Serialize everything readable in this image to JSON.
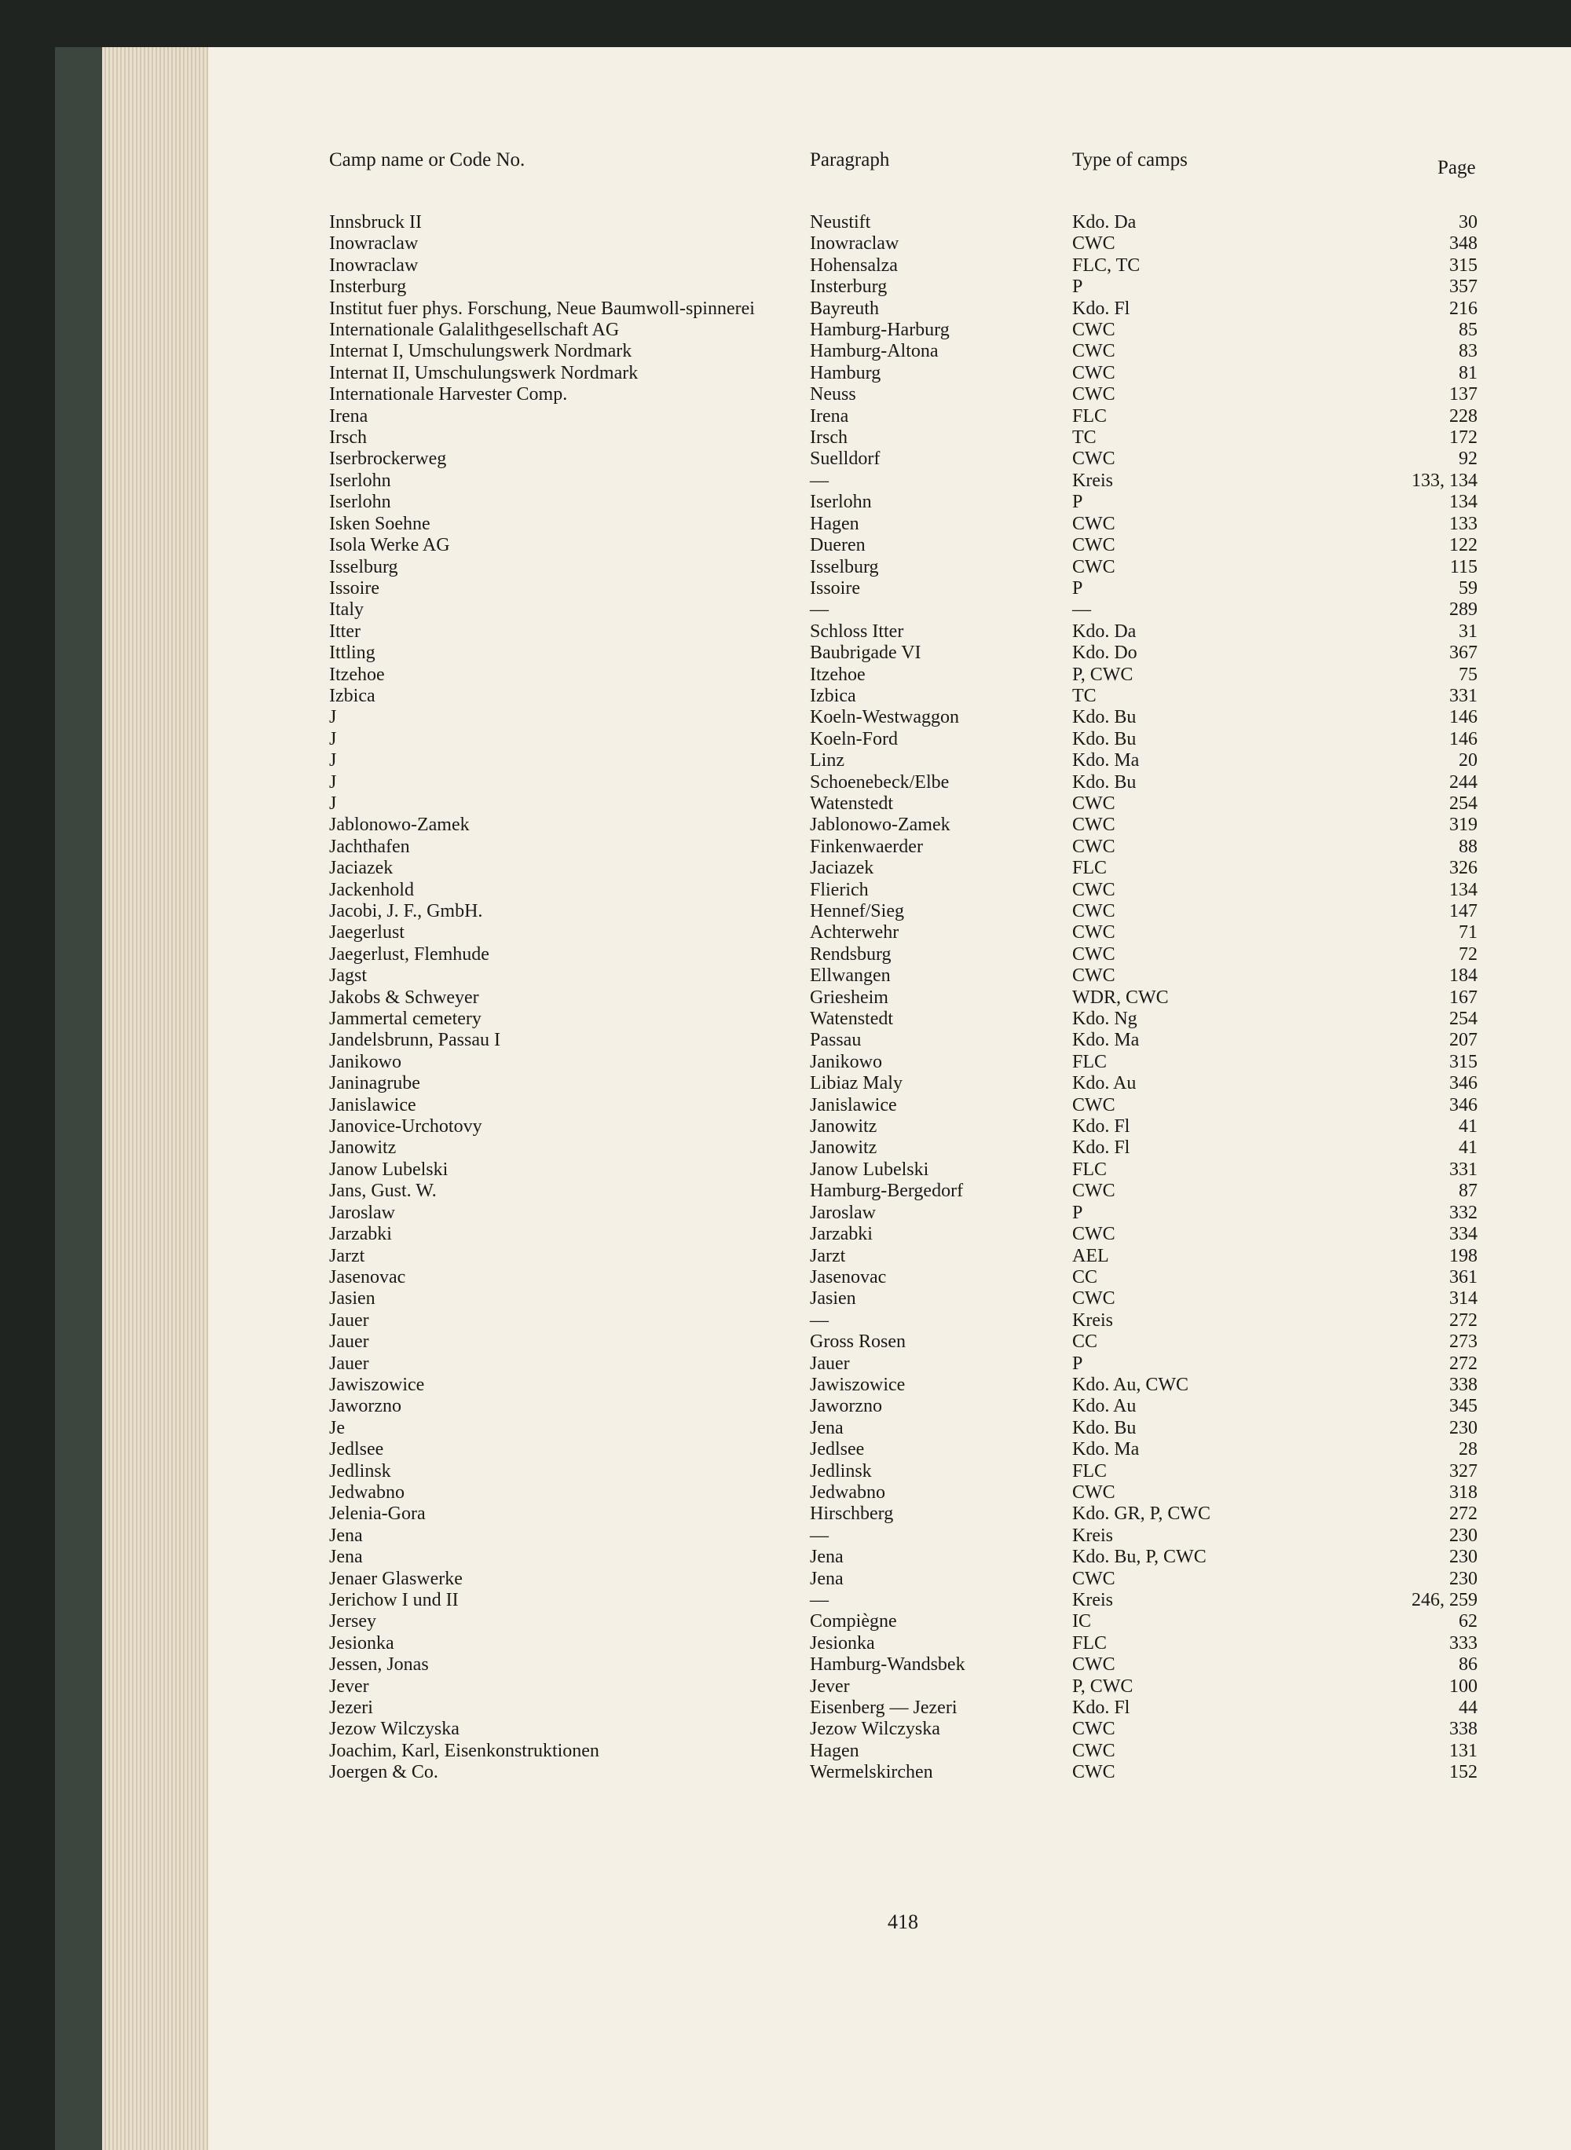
{
  "header": {
    "name": "Camp name or Code No.",
    "paragraph": "Paragraph",
    "type": "Type of camps",
    "page": "Page"
  },
  "rows": [
    [
      "Innsbruck II",
      "Neustift",
      "Kdo. Da",
      "30"
    ],
    [
      "Inowraclaw",
      "Inowraclaw",
      "CWC",
      "348"
    ],
    [
      "Inowraclaw",
      "Hohensalza",
      "FLC, TC",
      "315"
    ],
    [
      "Insterburg",
      "Insterburg",
      "P",
      "357"
    ],
    [
      "Institut fuer phys. Forschung, Neue Baumwoll-spinnerei",
      "Bayreuth",
      "Kdo. Fl",
      "216"
    ],
    [
      "Internationale Galalithgesellschaft AG",
      "Hamburg-Harburg",
      "CWC",
      "85"
    ],
    [
      "Internat I, Umschulungswerk Nordmark",
      "Hamburg-Altona",
      "CWC",
      "83"
    ],
    [
      "Internat II, Umschulungswerk Nordmark",
      "Hamburg",
      "CWC",
      "81"
    ],
    [
      "Internationale Harvester Comp.",
      "Neuss",
      "CWC",
      "137"
    ],
    [
      "Irena",
      "Irena",
      "FLC",
      "228"
    ],
    [
      "Irsch",
      "Irsch",
      "TC",
      "172"
    ],
    [
      "Iserbrockerweg",
      "Suelldorf",
      "CWC",
      "92"
    ],
    [
      "Iserlohn",
      "—",
      "Kreis",
      "133, 134"
    ],
    [
      "Iserlohn",
      "Iserlohn",
      "P",
      "134"
    ],
    [
      "Isken Soehne",
      "Hagen",
      "CWC",
      "133"
    ],
    [
      "Isola Werke AG",
      "Dueren",
      "CWC",
      "122"
    ],
    [
      "Isselburg",
      "Isselburg",
      "CWC",
      "115"
    ],
    [
      "Issoire",
      "Issoire",
      "P",
      "59"
    ],
    [
      "Italy",
      "—",
      "—",
      "289"
    ],
    [
      "Itter",
      "Schloss Itter",
      "Kdo. Da",
      "31"
    ],
    [
      "Ittling",
      "Baubrigade VI",
      "Kdo. Do",
      "367"
    ],
    [
      "Itzehoe",
      "Itzehoe",
      "P, CWC",
      "75"
    ],
    [
      "Izbica",
      "Izbica",
      "TC",
      "331"
    ],
    [
      "J",
      "Koeln-Westwaggon",
      "Kdo. Bu",
      "146"
    ],
    [
      "J",
      "Koeln-Ford",
      "Kdo. Bu",
      "146"
    ],
    [
      "J",
      "Linz",
      "Kdo. Ma",
      "20"
    ],
    [
      "J",
      "Schoenebeck/Elbe",
      "Kdo. Bu",
      "244"
    ],
    [
      "J",
      "Watenstedt",
      "CWC",
      "254"
    ],
    [
      "Jablonowo-Zamek",
      "Jablonowo-Zamek",
      "CWC",
      "319"
    ],
    [
      "Jachthafen",
      "Finkenwaerder",
      "CWC",
      "88"
    ],
    [
      "Jaciazek",
      "Jaciazek",
      "FLC",
      "326"
    ],
    [
      "Jackenhold",
      "Flierich",
      "CWC",
      "134"
    ],
    [
      "Jacobi, J. F., GmbH.",
      "Hennef/Sieg",
      "CWC",
      "147"
    ],
    [
      "Jaegerlust",
      "Achterwehr",
      "CWC",
      "71"
    ],
    [
      "Jaegerlust, Flemhude",
      "Rendsburg",
      "CWC",
      "72"
    ],
    [
      "Jagst",
      "Ellwangen",
      "CWC",
      "184"
    ],
    [
      "Jakobs & Schweyer",
      "Griesheim",
      "WDR, CWC",
      "167"
    ],
    [
      "Jammertal cemetery",
      "Watenstedt",
      "Kdo. Ng",
      "254"
    ],
    [
      "Jandelsbrunn, Passau I",
      "Passau",
      "Kdo. Ma",
      "207"
    ],
    [
      "Janikowo",
      "Janikowo",
      "FLC",
      "315"
    ],
    [
      "Janinagrube",
      "Libiaz Maly",
      "Kdo. Au",
      "346"
    ],
    [
      "Janislawice",
      "Janislawice",
      "CWC",
      "346"
    ],
    [
      "Janovice-Urchotovy",
      "Janowitz",
      "Kdo. Fl",
      "41"
    ],
    [
      "Janowitz",
      "Janowitz",
      "Kdo. Fl",
      "41"
    ],
    [
      "Janow Lubelski",
      "Janow Lubelski",
      "FLC",
      "331"
    ],
    [
      "Jans, Gust. W.",
      "Hamburg-Bergedorf",
      "CWC",
      "87"
    ],
    [
      "Jaroslaw",
      "Jaroslaw",
      "P",
      "332"
    ],
    [
      "Jarzabki",
      "Jarzabki",
      "CWC",
      "334"
    ],
    [
      "Jarzt",
      "Jarzt",
      "AEL",
      "198"
    ],
    [
      "Jasenovac",
      "Jasenovac",
      "CC",
      "361"
    ],
    [
      "Jasien",
      "Jasien",
      "CWC",
      "314"
    ],
    [
      "Jauer",
      "—",
      "Kreis",
      "272"
    ],
    [
      "Jauer",
      "Gross Rosen",
      "CC",
      "273"
    ],
    [
      "Jauer",
      "Jauer",
      "P",
      "272"
    ],
    [
      "Jawiszowice",
      "Jawiszowice",
      "Kdo. Au, CWC",
      "338"
    ],
    [
      "Jaworzno",
      "Jaworzno",
      "Kdo. Au",
      "345"
    ],
    [
      "Je",
      "Jena",
      "Kdo. Bu",
      "230"
    ],
    [
      "Jedlsee",
      "Jedlsee",
      "Kdo. Ma",
      "28"
    ],
    [
      "Jedlinsk",
      "Jedlinsk",
      "FLC",
      "327"
    ],
    [
      "Jedwabno",
      "Jedwabno",
      "CWC",
      "318"
    ],
    [
      "Jelenia-Gora",
      "Hirschberg",
      "Kdo. GR, P, CWC",
      "272"
    ],
    [
      "Jena",
      "—",
      "Kreis",
      "230"
    ],
    [
      "Jena",
      "Jena",
      "Kdo. Bu, P, CWC",
      "230"
    ],
    [
      "Jenaer Glaswerke",
      "Jena",
      "CWC",
      "230"
    ],
    [
      "Jerichow I und II",
      "—",
      "Kreis",
      "246, 259"
    ],
    [
      "Jersey",
      "Compiègne",
      "IC",
      "62"
    ],
    [
      "Jesionka",
      "Jesionka",
      "FLC",
      "333"
    ],
    [
      "Jessen, Jonas",
      "Hamburg-Wandsbek",
      "CWC",
      "86"
    ],
    [
      "Jever",
      "Jever",
      "P, CWC",
      "100"
    ],
    [
      "Jezeri",
      "Eisenberg — Jezeri",
      "Kdo. Fl",
      "44"
    ],
    [
      "Jezow Wilczyska",
      "Jezow Wilczyska",
      "CWC",
      "338"
    ],
    [
      "Joachim, Karl, Eisenkonstruktionen",
      "Hagen",
      "CWC",
      "131"
    ],
    [
      "Joergen & Co.",
      "Wermelskirchen",
      "CWC",
      "152"
    ]
  ],
  "page_number": "418"
}
